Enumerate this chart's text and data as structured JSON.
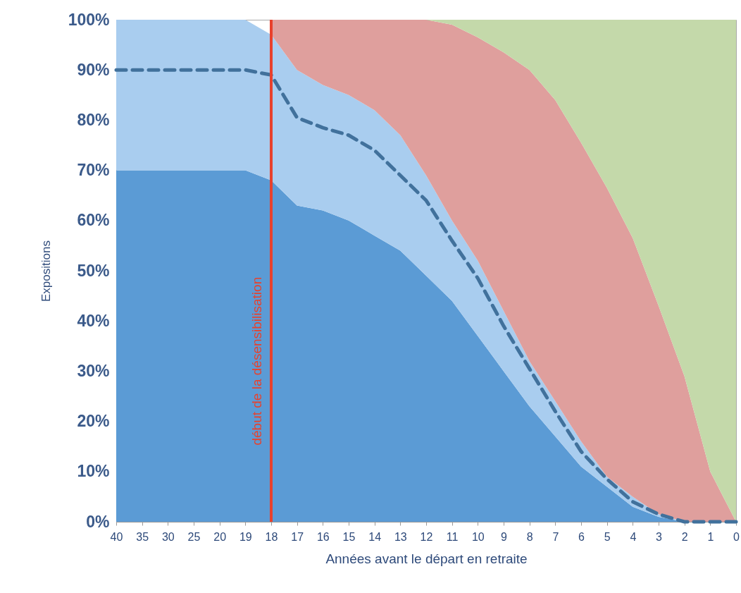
{
  "chart_data": {
    "type": "area",
    "stacked": true,
    "xlabel": "Années avant le départ en retraite",
    "ylabel": "Expositions",
    "categories": [
      "40",
      "35",
      "30",
      "25",
      "20",
      "19",
      "18",
      "17",
      "16",
      "15",
      "14",
      "13",
      "12",
      "11",
      "10",
      "9",
      "8",
      "7",
      "6",
      "5",
      "4",
      "3",
      "2",
      "1",
      "0"
    ],
    "series": [
      {
        "color": "#5b9bd5",
        "values": [
          70,
          70,
          70,
          70,
          70,
          70,
          68,
          63,
          62,
          60,
          57,
          54,
          49,
          44,
          37,
          30,
          23,
          17,
          11,
          7,
          3,
          1,
          0,
          0,
          0
        ]
      },
      {
        "color": "#a9cdef",
        "values": [
          30,
          30,
          30,
          30,
          30,
          30,
          29,
          27,
          25,
          25,
          25,
          23,
          20,
          16,
          15,
          12,
          9,
          7,
          5,
          2,
          2,
          0.5,
          0,
          0,
          0
        ]
      },
      {
        "color": "#df9f9d",
        "values": [
          null,
          null,
          null,
          null,
          null,
          null,
          3,
          10,
          13,
          15,
          18,
          23,
          31,
          39,
          44.5,
          51.5,
          58,
          60,
          59.5,
          57.5,
          51.5,
          41.5,
          29,
          10,
          0
        ]
      },
      {
        "color": "#c4d9aa",
        "values": [
          null,
          null,
          null,
          null,
          null,
          null,
          null,
          null,
          null,
          null,
          null,
          null,
          0,
          1,
          3.5,
          6.5,
          10,
          16,
          24.5,
          33.5,
          43.5,
          57,
          71,
          90,
          100
        ]
      },
      {
        "type": "line",
        "line_style": "dashed",
        "color": "#41719c",
        "values": [
          90,
          90,
          90,
          90,
          90,
          90,
          89,
          80.5,
          78.5,
          77,
          74,
          69,
          64,
          56,
          48.5,
          39,
          30.5,
          22,
          14,
          8.5,
          4,
          1.5,
          0,
          0,
          0
        ]
      }
    ],
    "ylim": [
      0,
      100
    ],
    "yticks": [
      {
        "value": 0,
        "label": "0%"
      },
      {
        "value": 10,
        "label": "10%"
      },
      {
        "value": 20,
        "label": "20%"
      },
      {
        "value": 30,
        "label": "30%"
      },
      {
        "value": 40,
        "label": "40%"
      },
      {
        "value": 50,
        "label": "50%"
      },
      {
        "value": 60,
        "label": "60%"
      },
      {
        "value": 70,
        "label": "70%"
      },
      {
        "value": 80,
        "label": "80%"
      },
      {
        "value": 90,
        "label": "90%"
      },
      {
        "value": 100,
        "label": "100%"
      }
    ],
    "ref_lines": [
      {
        "axis": "x",
        "value": "18",
        "label": "début de la désensibilisation",
        "color": "#e8412c"
      }
    ],
    "grid": false,
    "legend": false
  }
}
